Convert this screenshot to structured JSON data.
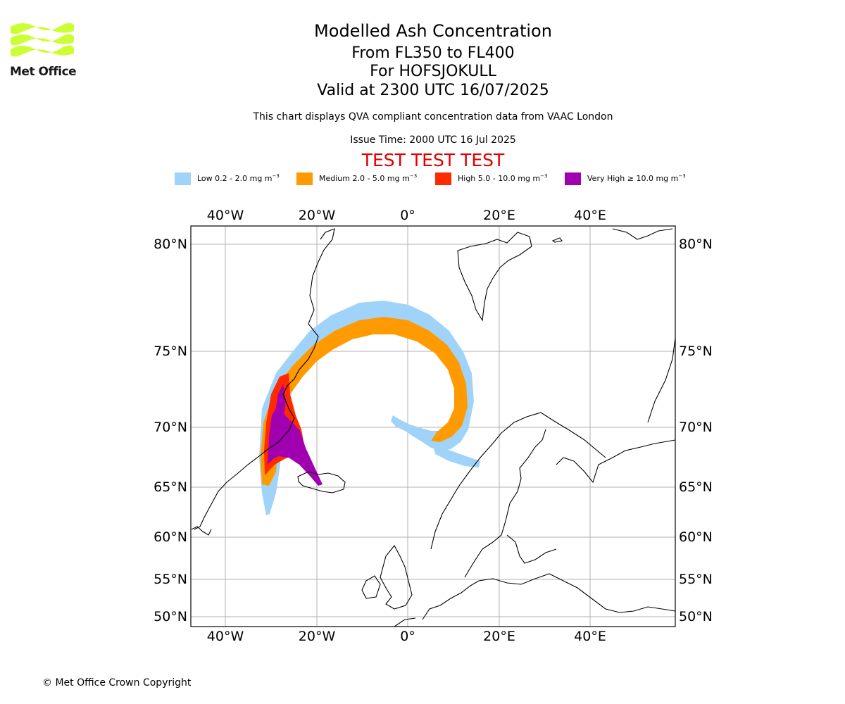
{
  "logo": {
    "text": "Met Office",
    "color": "#ccff33"
  },
  "header": {
    "title": "Modelled Ash Concentration",
    "levels": "From FL350 to FL400",
    "volcano": "For HOFSJOKULL",
    "valid": "Valid at 2300 UTC 16/07/2025",
    "note": "This chart displays QVA compliant concentration data from VAAC London",
    "issue": "Issue Time: 2000 UTC 16 Jul 2025",
    "test": "TEST TEST TEST"
  },
  "legend": [
    {
      "text": "Low 0.2 - 2.0 mg m",
      "color": "#a0d3fa"
    },
    {
      "text": "Medium 2.0 - 5.0 mg m",
      "color": "#ff9a00"
    },
    {
      "text": "High 5.0 - 10.0 mg m",
      "color": "#ff2a00"
    },
    {
      "text": "Very High  ≥  10.0 mg m",
      "color": "#a000b0"
    }
  ],
  "legend_unit_exponent": "−3",
  "map": {
    "lon_labels": [
      "40°W",
      "20°W",
      "0°",
      "20°E",
      "40°E"
    ],
    "lat_labels": [
      "80°N",
      "75°N",
      "70°N",
      "65°N",
      "60°N",
      "55°N",
      "50°N"
    ],
    "grid": true
  },
  "copyright": "© Met Office Crown Copyright"
}
